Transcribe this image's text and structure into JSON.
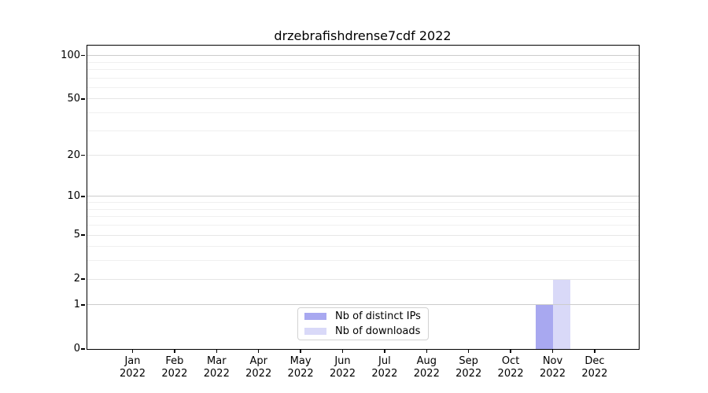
{
  "chart_data": {
    "type": "bar",
    "title": "drzebrafishdrense7cdf 2022",
    "categories": [
      "Jan 2022",
      "Feb 2022",
      "Mar 2022",
      "Apr 2022",
      "May 2022",
      "Jun 2022",
      "Jul 2022",
      "Aug 2022",
      "Sep 2022",
      "Oct 2022",
      "Nov 2022",
      "Dec 2022"
    ],
    "series": [
      {
        "name": "Nb of distinct IPs",
        "color": "#a8a8f0",
        "values": [
          0,
          0,
          0,
          0,
          0,
          0,
          0,
          0,
          0,
          0,
          1,
          0
        ]
      },
      {
        "name": "Nb of downloads",
        "color": "#d9d9f8",
        "values": [
          0,
          0,
          0,
          0,
          0,
          0,
          0,
          0,
          0,
          0,
          2,
          0
        ]
      }
    ],
    "xlabel": "",
    "ylabel": "",
    "y_scale": "log1p",
    "ylim": [
      0,
      117
    ],
    "grid": true,
    "legend_position": "bottom-center-inside",
    "y_ticks": [
      {
        "label": "100",
        "value": 100
      },
      {
        "label": "50",
        "value": 50
      },
      {
        "label": "20",
        "value": 20
      },
      {
        "label": "10",
        "value": 10
      },
      {
        "label": "5",
        "value": 5
      },
      {
        "label": "2",
        "value": 2
      },
      {
        "label": "1",
        "value": 1
      },
      {
        "label": "0",
        "value": 0
      }
    ],
    "y_gridlines": {
      "decade": [
        1,
        10,
        100
      ],
      "labeled": [
        2,
        5,
        20,
        50
      ],
      "minor": [
        3,
        4,
        6,
        7,
        8,
        9,
        30,
        40,
        60,
        70,
        80,
        90
      ]
    }
  },
  "x_ticks": [
    {
      "month": "Jan",
      "year": "2022"
    },
    {
      "month": "Feb",
      "year": "2022"
    },
    {
      "month": "Mar",
      "year": "2022"
    },
    {
      "month": "Apr",
      "year": "2022"
    },
    {
      "month": "May",
      "year": "2022"
    },
    {
      "month": "Jun",
      "year": "2022"
    },
    {
      "month": "Jul",
      "year": "2022"
    },
    {
      "month": "Aug",
      "year": "2022"
    },
    {
      "month": "Sep",
      "year": "2022"
    },
    {
      "month": "Oct",
      "year": "2022"
    },
    {
      "month": "Nov",
      "year": "2022"
    },
    {
      "month": "Dec",
      "year": "2022"
    }
  ],
  "colors": {
    "distinct_ips_bar": "#a8a8f0",
    "downloads_bar": "#d9d9f8",
    "grid_decade": "#cccccc",
    "grid_labeled": "#e6e6e6",
    "grid_minor": "#f0f0f0",
    "axis": "#000000",
    "legend_border": "#d2d2d2"
  }
}
